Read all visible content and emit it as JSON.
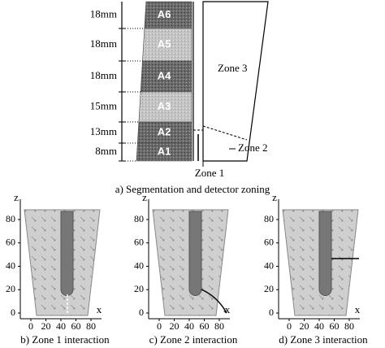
{
  "segmentation": {
    "dimensions": [
      "18mm",
      "18mm",
      "18mm",
      "15mm",
      "13mm",
      "8mm"
    ],
    "segments": [
      "A6",
      "A5",
      "A4",
      "A3",
      "A2",
      "A1"
    ],
    "zones": [
      "Zone 3",
      "Zone 2",
      "Zone 1"
    ],
    "caption": "a) Segmentation and detector zoning"
  },
  "panels": [
    {
      "caption": "b) Zone 1 interaction",
      "x_label": "x",
      "y_label": "z",
      "xticks": [
        0,
        20,
        40,
        60,
        80
      ],
      "yticks": [
        0,
        20,
        40,
        60,
        80
      ]
    },
    {
      "caption": "c) Zone 2 interaction",
      "x_label": "x",
      "y_label": "z",
      "xticks": [
        0,
        20,
        40,
        60,
        80
      ],
      "yticks": [
        0,
        20,
        40,
        60,
        80
      ]
    },
    {
      "caption": "d) Zone 3 interaction",
      "x_label": "x",
      "y_label": "z",
      "xticks": [
        0,
        20,
        40,
        60,
        80
      ],
      "yticks": [
        0,
        20,
        40,
        60,
        80
      ]
    }
  ]
}
